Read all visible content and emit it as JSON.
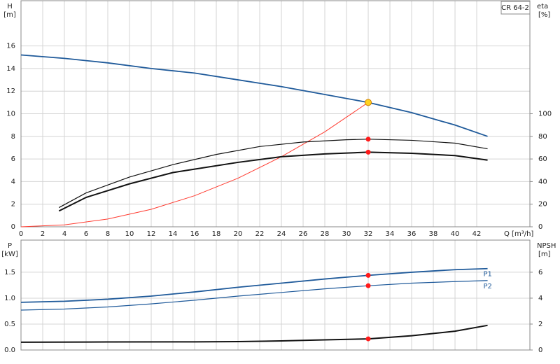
{
  "chart_data": [
    {
      "type": "line",
      "title": "CR 64-2",
      "ylabel": "H",
      "yunit": "[m]",
      "y2label": "eta",
      "y2unit": "[%]",
      "xlabel": "Q [m³/h]",
      "xlim": [
        0,
        46.9
      ],
      "xticks": [
        0,
        2,
        4,
        6,
        8,
        10,
        12,
        14,
        16,
        18,
        20,
        22,
        24,
        26,
        28,
        30,
        32,
        34,
        36,
        38,
        40,
        42
      ],
      "ylim": [
        0,
        20
      ],
      "yticks": [
        0,
        2,
        4,
        6,
        8,
        10,
        12,
        14,
        16
      ],
      "y2lim": [
        0,
        200
      ],
      "y2ticks": [
        0,
        20,
        40,
        60,
        80,
        100
      ],
      "grid": true,
      "series": [
        {
          "color": "#1f5a9a",
          "width": 1.8,
          "axis": "y",
          "x": [
            0,
            4,
            8,
            12,
            16,
            20,
            24,
            28,
            32,
            36,
            40,
            43
          ],
          "values": [
            15.2,
            14.9,
            14.5,
            14.0,
            13.6,
            13.0,
            12.4,
            11.7,
            11.0,
            10.1,
            9.0,
            8.0
          ]
        },
        {
          "color": "#ff3b30",
          "width": 1,
          "axis": "y",
          "x": [
            0,
            4,
            8,
            12,
            16,
            20,
            24,
            28,
            32
          ],
          "values": [
            0,
            0.17,
            0.69,
            1.55,
            2.75,
            4.3,
            6.2,
            8.4,
            11.0
          ]
        },
        {
          "color": "#111111",
          "width": 1.2,
          "axis": "y2",
          "x": [
            3.5,
            6,
            10,
            14,
            18,
            22,
            26,
            30,
            32,
            36,
            40,
            43
          ],
          "values": [
            17,
            30,
            44,
            55,
            64,
            71,
            75,
            77,
            77.5,
            76.5,
            74,
            69
          ]
        },
        {
          "color": "#111111",
          "width": 2,
          "axis": "y2",
          "x": [
            3.5,
            6,
            10,
            14,
            16,
            20,
            24,
            28,
            32,
            36,
            40,
            43
          ],
          "values": [
            14,
            26,
            38,
            48,
            51,
            57,
            62,
            64.5,
            66,
            65,
            63,
            59
          ]
        }
      ],
      "markers": [
        {
          "x": 32,
          "y": 11.0,
          "axis": "y",
          "color": "#ffd21f"
        },
        {
          "x": 32,
          "y": 77.5,
          "axis": "y2",
          "color": "#ff1a1a"
        },
        {
          "x": 32,
          "y": 66,
          "axis": "y2",
          "color": "#ff1a1a"
        }
      ]
    },
    {
      "type": "line",
      "ylabel": "P",
      "yunit": "[kW]",
      "y2label": "NPSH",
      "y2unit": "[m]",
      "xlim": [
        0,
        46.9
      ],
      "xticks": [
        0,
        2,
        4,
        6,
        8,
        10,
        12,
        14,
        16,
        18,
        20,
        22,
        24,
        26,
        28,
        30,
        32,
        34,
        36,
        38,
        40,
        42
      ],
      "ylim": [
        0,
        2.12
      ],
      "yticks": [
        {
          "value": 0,
          "label": "0.0"
        },
        0.5,
        {
          "value": 1,
          "label": "1.0"
        },
        1.5
      ],
      "y2lim": [
        0,
        8.48
      ],
      "y2ticks": [
        0,
        2,
        4,
        6
      ],
      "grid": true,
      "series": [
        {
          "name": "P1",
          "color": "#1f5a9a",
          "width": 1.8,
          "axis": "y",
          "x": [
            0,
            4,
            8,
            12,
            16,
            20,
            24,
            28,
            32,
            36,
            40,
            43
          ],
          "values": [
            0.92,
            0.94,
            0.98,
            1.04,
            1.12,
            1.21,
            1.29,
            1.37,
            1.44,
            1.5,
            1.55,
            1.57
          ]
        },
        {
          "name": "P2",
          "color": "#1f5a9a",
          "width": 1.2,
          "axis": "y",
          "x": [
            0,
            4,
            8,
            12,
            16,
            20,
            24,
            28,
            32,
            36,
            40,
            43
          ],
          "values": [
            0.77,
            0.79,
            0.83,
            0.89,
            0.96,
            1.04,
            1.11,
            1.18,
            1.24,
            1.29,
            1.32,
            1.34
          ]
        },
        {
          "color": "#111111",
          "width": 2,
          "axis": "y2",
          "x": [
            0,
            8,
            16,
            20,
            24,
            28,
            32,
            36,
            40,
            43
          ],
          "values": [
            0.6,
            0.62,
            0.63,
            0.65,
            0.7,
            0.78,
            0.86,
            1.1,
            1.45,
            1.9
          ]
        }
      ],
      "markers": [
        {
          "x": 32,
          "y": 1.44,
          "axis": "y",
          "color": "#ff1a1a"
        },
        {
          "x": 32,
          "y": 1.24,
          "axis": "y",
          "color": "#ff1a1a"
        },
        {
          "x": 32,
          "y": 0.86,
          "axis": "y2",
          "color": "#ff1a1a"
        }
      ]
    }
  ]
}
